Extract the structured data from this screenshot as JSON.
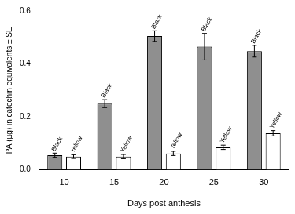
{
  "chart_data": {
    "type": "bar",
    "x_label": "Days post anthesis",
    "y_label": "PA (µg) in catechin equivalents ± SE",
    "categories": [
      "10",
      "15",
      "20",
      "25",
      "30"
    ],
    "series": [
      {
        "name": "Black",
        "color": "#8f8f8f",
        "values": [
          0.055,
          0.25,
          0.505,
          0.465,
          0.448
        ],
        "errors": [
          0.008,
          0.015,
          0.02,
          0.05,
          0.022
        ]
      },
      {
        "name": "Yellow",
        "color": "#ffffff",
        "values": [
          0.05,
          0.05,
          0.062,
          0.085,
          0.138
        ],
        "errors": [
          0.007,
          0.008,
          0.008,
          0.008,
          0.01
        ]
      }
    ],
    "ylim": [
      0,
      0.6
    ],
    "yticks": [
      {
        "value": 0,
        "label": "0.0"
      },
      0.2,
      0.4,
      0.6
    ],
    "grid": false
  }
}
